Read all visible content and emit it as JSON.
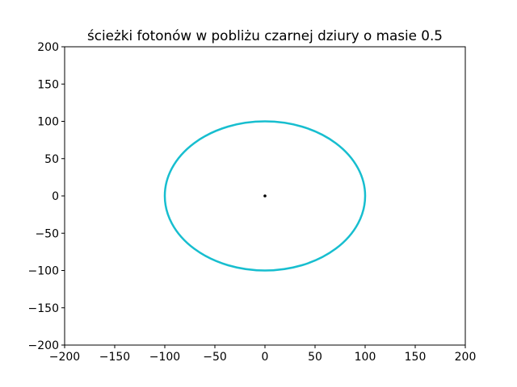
{
  "chart_data": {
    "type": "line",
    "title": "ścieżki fotonów w pobliżu czarnej dziury o masie 0.5",
    "xlabel": "",
    "ylabel": "",
    "xlim": [
      -200,
      200
    ],
    "ylim": [
      -200,
      200
    ],
    "x_ticks": [
      -200,
      -150,
      -100,
      -50,
      0,
      50,
      100,
      150,
      200
    ],
    "y_ticks": [
      -200,
      -150,
      -100,
      -50,
      0,
      50,
      100,
      150,
      200
    ],
    "grid": false,
    "legend": "none",
    "series": [
      {
        "kind": "closed-curve",
        "shape": "ellipse",
        "center": [
          0,
          0
        ],
        "semi_axis_x": 100,
        "semi_axis_y": 100,
        "color": "#17becf"
      }
    ],
    "markers": [
      {
        "x": 0,
        "y": 0,
        "color": "#000000"
      }
    ]
  }
}
